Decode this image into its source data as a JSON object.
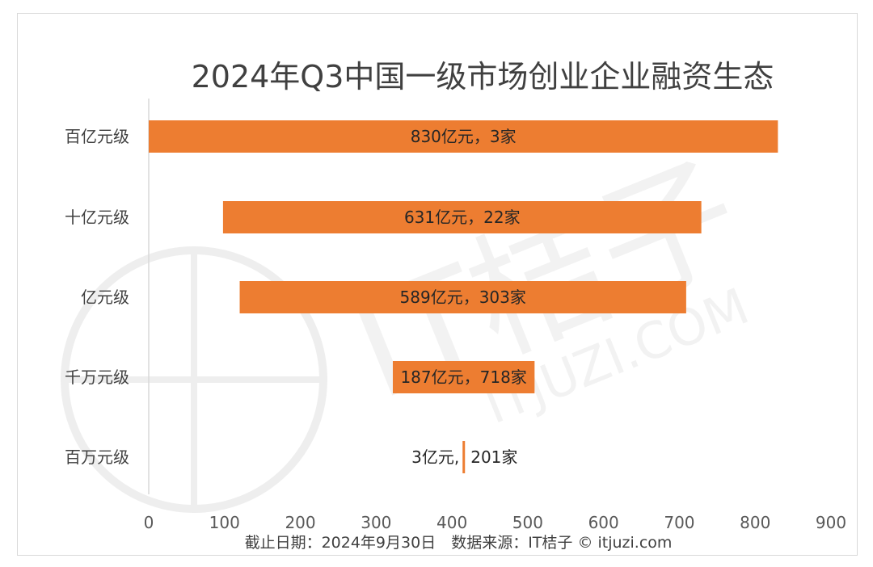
{
  "chart_data": {
    "type": "bar",
    "orientation": "horizontal",
    "stacked_floating": true,
    "title": "2024年Q3中国一级市场创业企业融资生态",
    "categories": [
      "百亿元级",
      "十亿元级",
      "亿元级",
      "千万元级",
      "百万元级"
    ],
    "series": [
      {
        "values": [
          0,
          98,
          120,
          322,
          414
        ]
      },
      {
        "values": [
          830,
          631,
          589,
          187,
          3
        ]
      }
    ],
    "data_labels": [
      "830亿元，3家",
      "631亿元，22家",
      "589亿元，303家",
      "187亿元，718家",
      "201家"
    ],
    "small_label": "3亿元,",
    "xlim": [
      0,
      900
    ],
    "xticks": [
      0,
      100,
      200,
      300,
      400,
      500,
      600,
      700,
      800,
      900
    ],
    "bar_color": "#ED7D31",
    "grid": false,
    "legend": "none"
  },
  "footer": {
    "source": "截止日期：2024年9月30日　数据来源：IT桔子 © itjuzi.com"
  },
  "watermark": {
    "text": "IT桔子",
    "subtext": "ITJUZI.COM"
  }
}
